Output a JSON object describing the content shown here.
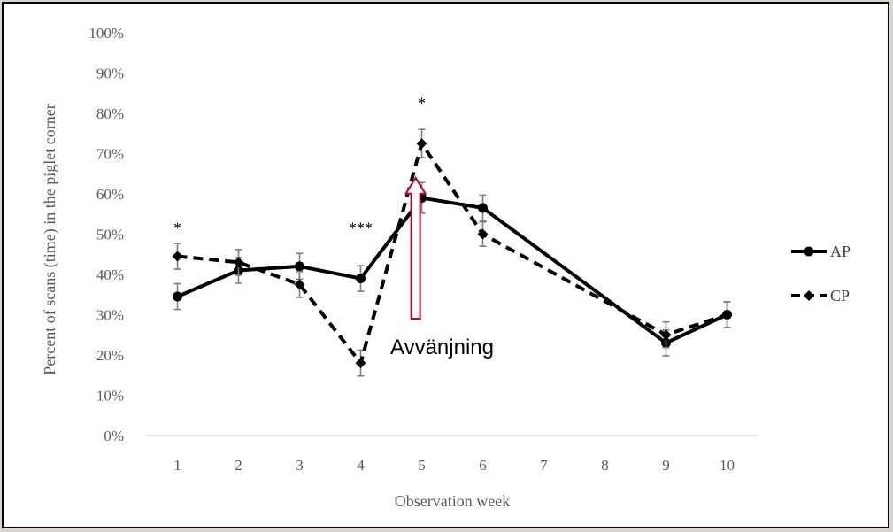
{
  "chart_data": {
    "type": "line",
    "title": "",
    "xlabel": "Observation week",
    "ylabel": "Percent of scans (time) in the piglet corner",
    "categories": [
      "1",
      "2",
      "3",
      "4",
      "5",
      "6",
      "7",
      "8",
      "9",
      "10"
    ],
    "ylim": [
      0,
      100
    ],
    "yticks": [
      "0%",
      "10%",
      "20%",
      "30%",
      "40%",
      "50%",
      "60%",
      "70%",
      "80%",
      "90%",
      "100%"
    ],
    "grid": false,
    "legend_position": "right",
    "series": [
      {
        "name": "AP",
        "style": "solid",
        "marker": "circle",
        "color": "#000000",
        "x": [
          1,
          2,
          3,
          4,
          5,
          6,
          9,
          10
        ],
        "values": [
          34.5,
          41,
          42,
          39,
          59,
          56.5,
          23,
          30
        ],
        "errors": [
          3.2,
          3.2,
          3.2,
          3.2,
          3.8,
          3.2,
          3.2,
          3.2
        ]
      },
      {
        "name": "CP",
        "style": "dashed",
        "marker": "diamond",
        "color": "#000000",
        "x": [
          1,
          2,
          3,
          4,
          5,
          6,
          9,
          10
        ],
        "values": [
          44.5,
          43,
          37.5,
          18,
          72.5,
          50,
          25,
          30
        ],
        "errors": [
          3.2,
          3.2,
          3.2,
          3.2,
          3.5,
          3,
          3.2,
          3.2
        ]
      }
    ],
    "significance": [
      {
        "x": 1,
        "label": "*",
        "y": 52
      },
      {
        "x": 4,
        "label": "***",
        "y": 52
      },
      {
        "x": 5,
        "label": "*",
        "y": 83
      }
    ],
    "annotation": {
      "text": "Avvänjning",
      "arrow_x": 4.9,
      "arrow_from": 29,
      "arrow_to": 64,
      "arrow_color": "#c0003c"
    }
  }
}
